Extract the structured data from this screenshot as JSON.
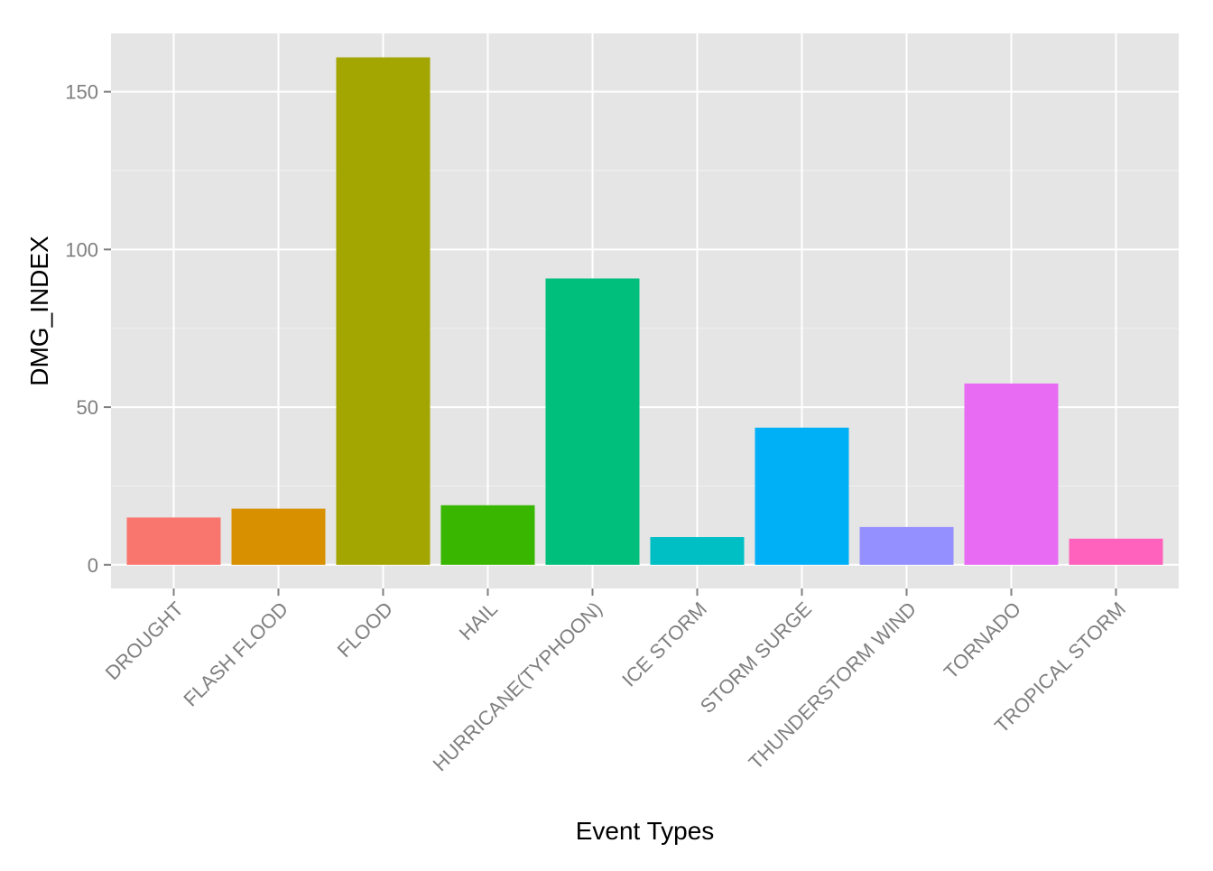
{
  "chart_data": {
    "type": "bar",
    "title": "",
    "xlabel": "Event Types",
    "ylabel": "DMG_INDEX",
    "categories": [
      "DROUGHT",
      "FLASH FLOOD",
      "FLOOD",
      "HAIL",
      "HURRICANE(TYPHOON)",
      "ICE STORM",
      "STORM SURGE",
      "THUNDERSTORM WIND",
      "TORNADO",
      "TROPICAL STORM"
    ],
    "values": [
      15.0,
      17.8,
      160.9,
      18.9,
      90.8,
      8.8,
      43.5,
      12.0,
      57.5,
      8.3
    ],
    "colors": [
      "#F8766D",
      "#D89000",
      "#A3A500",
      "#39B600",
      "#00BF7D",
      "#00BFC4",
      "#00B0F6",
      "#9590FF",
      "#E76BF3",
      "#FF62BC"
    ],
    "ylim": [
      -7.5,
      168.5
    ],
    "yticks": [
      0,
      50,
      100,
      150
    ],
    "grid": true,
    "legend": "none",
    "panel_background": "#E5E5E5",
    "grid_color": "#FFFFFF"
  }
}
